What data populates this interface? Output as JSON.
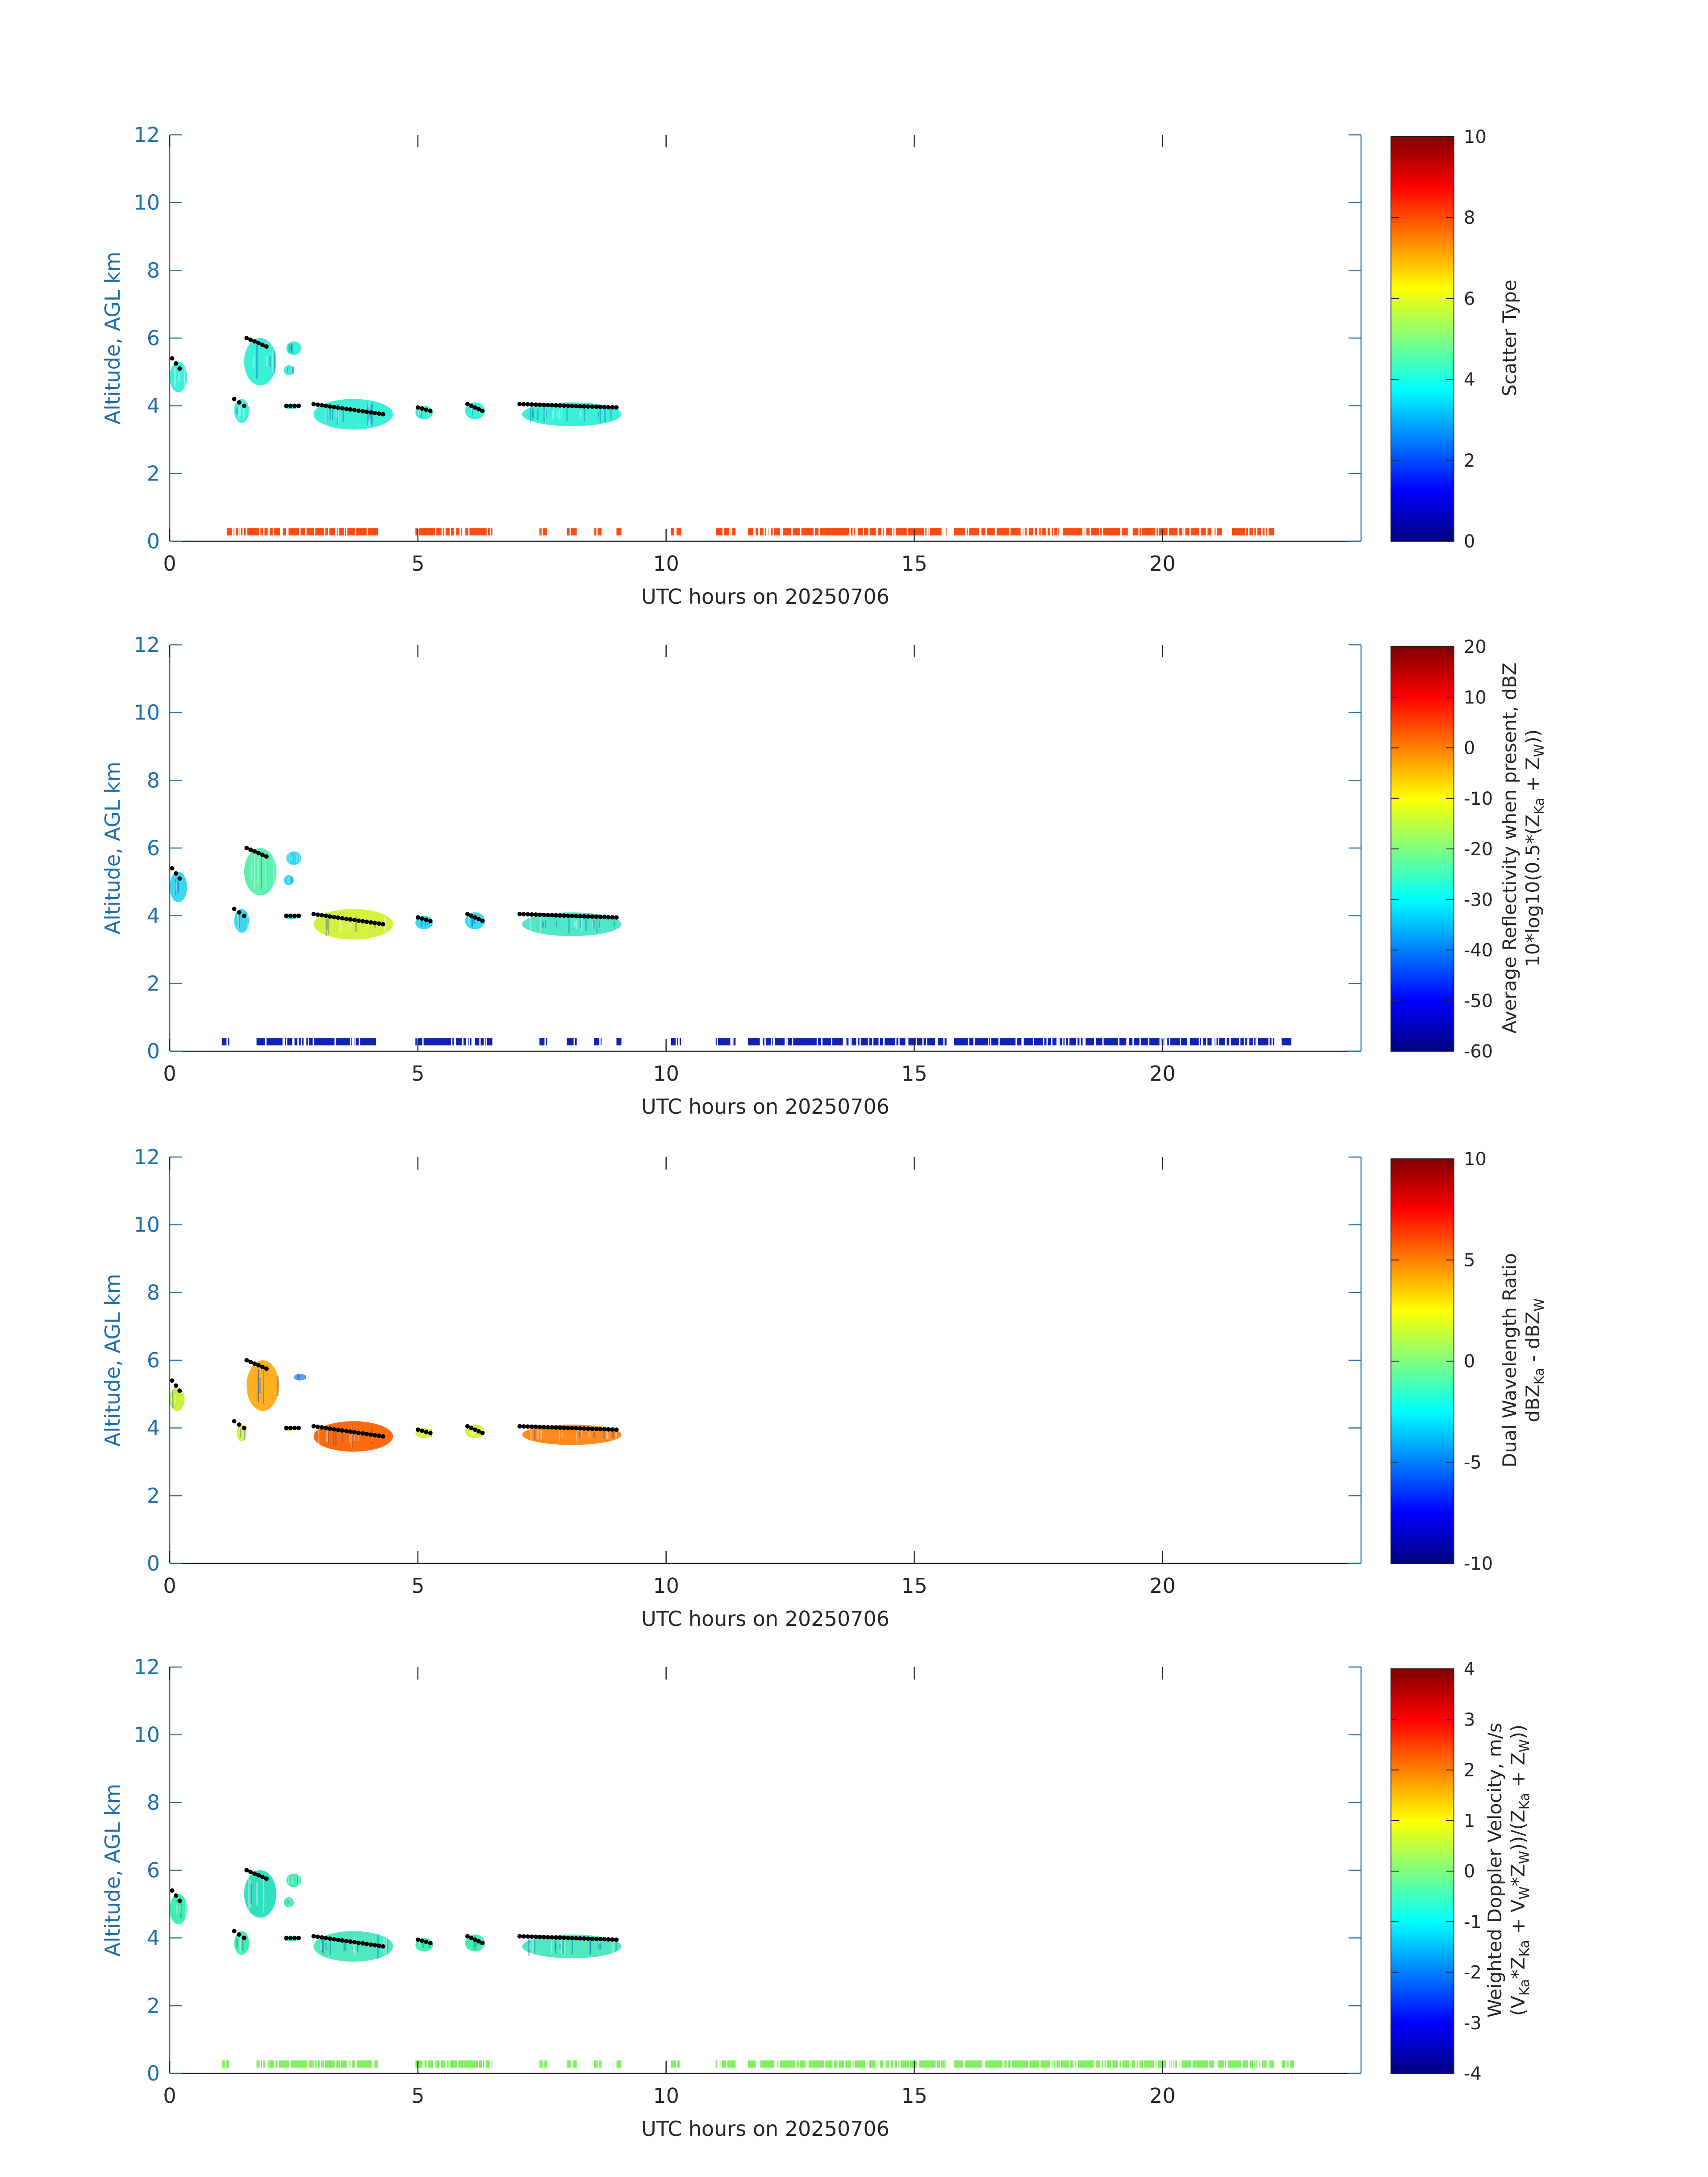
{
  "chart_data": [
    {
      "type": "heatmap",
      "panel": "scatter-type",
      "xlabel": "UTC hours on 20250706",
      "ylabel": "Altitude, AGL km",
      "xlim": [
        0,
        24
      ],
      "ylim": [
        0,
        12
      ],
      "xticks": [
        0,
        5,
        10,
        15,
        20
      ],
      "yticks": [
        0,
        2,
        4,
        6,
        8,
        10,
        12
      ],
      "colorbar": {
        "title_lines": [
          "Scatter Type"
        ],
        "range": [
          0,
          10
        ],
        "ticks": [
          "0",
          "2",
          "4",
          "6",
          "8",
          "10"
        ]
      },
      "surface_band": {
        "altitude_km": 0.25,
        "color": "#ff4a12",
        "segments": [
          [
            1.15,
            4.2
          ],
          [
            4.95,
            6.5
          ],
          [
            7.45,
            7.6
          ],
          [
            8.0,
            8.2
          ],
          [
            8.55,
            8.7
          ],
          [
            9.0,
            9.1
          ],
          [
            10.1,
            10.3
          ],
          [
            11.0,
            11.4
          ],
          [
            11.65,
            15.65
          ],
          [
            15.8,
            21.2
          ],
          [
            21.4,
            22.25
          ]
        ]
      },
      "echoes": [
        {
          "x": [
            0.0,
            0.35
          ],
          "y": [
            4.4,
            5.3
          ],
          "color": "#3cf0d8"
        },
        {
          "x": [
            1.3,
            1.6
          ],
          "y": [
            3.5,
            4.2
          ],
          "color": "#3cf0d8"
        },
        {
          "x": [
            1.5,
            2.15
          ],
          "y": [
            4.6,
            6.0
          ],
          "color": "#3cf0d8"
        },
        {
          "x": [
            2.35,
            2.65
          ],
          "y": [
            5.5,
            5.9
          ],
          "color": "#3cf0d8"
        },
        {
          "x": [
            2.3,
            2.5
          ],
          "y": [
            4.9,
            5.2
          ],
          "color": "#3cf0d8"
        },
        {
          "x": [
            2.3,
            2.6
          ],
          "y": [
            3.9,
            4.05
          ],
          "color": "#3cf0d8"
        },
        {
          "x": [
            2.9,
            4.5
          ],
          "y": [
            3.3,
            4.2
          ],
          "color": "#3cf0d8"
        },
        {
          "x": [
            4.95,
            5.3
          ],
          "y": [
            3.6,
            4.0
          ],
          "color": "#3cf0d8"
        },
        {
          "x": [
            5.95,
            6.35
          ],
          "y": [
            3.6,
            4.1
          ],
          "color": "#3cf0d8"
        },
        {
          "x": [
            7.1,
            9.1
          ],
          "y": [
            3.4,
            4.1
          ],
          "color": "#3cf0d8"
        }
      ],
      "cloud_top_points": [
        {
          "x": [
            0.05,
            0.2
          ],
          "y": [
            5.1,
            5.4
          ]
        },
        {
          "x": [
            1.3,
            1.5
          ],
          "y": [
            4.0,
            4.2
          ]
        },
        {
          "x": [
            1.55,
            1.95
          ],
          "y": [
            5.75,
            6.0
          ]
        },
        {
          "x": [
            2.35,
            2.6
          ],
          "y": [
            4.0,
            4.0
          ]
        },
        {
          "x": [
            2.9,
            4.3
          ],
          "y": [
            3.75,
            4.05
          ]
        },
        {
          "x": [
            5.0,
            5.25
          ],
          "y": [
            3.85,
            3.95
          ]
        },
        {
          "x": [
            6.0,
            6.3
          ],
          "y": [
            3.85,
            4.05
          ]
        },
        {
          "x": [
            7.05,
            9.0
          ],
          "y": [
            3.95,
            4.05
          ]
        }
      ]
    },
    {
      "type": "heatmap",
      "panel": "average-reflectivity",
      "xlabel": "UTC hours on 20250706",
      "ylabel": "Altitude, AGL km",
      "xlim": [
        0,
        24
      ],
      "ylim": [
        0,
        12
      ],
      "xticks": [
        0,
        5,
        10,
        15,
        20
      ],
      "yticks": [
        0,
        2,
        4,
        6,
        8,
        10,
        12
      ],
      "colorbar": {
        "title_lines": [
          "Average Reflectivity when present, dBZ",
          "10*log10(0.5*(Z",
          "Ka",
          " + Z",
          "W",
          "))"
        ],
        "range": [
          -60,
          20
        ],
        "ticks": [
          "-60",
          "-50",
          "-40",
          "-30",
          "-20",
          "-10",
          "0",
          "10",
          "20"
        ]
      },
      "surface_band": {
        "altitude_km": 0.25,
        "color": "#1020b8",
        "segments": [
          [
            1.05,
            1.2
          ],
          [
            1.75,
            4.2
          ],
          [
            4.95,
            6.5
          ],
          [
            7.45,
            7.6
          ],
          [
            8.0,
            8.2
          ],
          [
            8.55,
            8.7
          ],
          [
            9.0,
            9.1
          ],
          [
            10.1,
            10.3
          ],
          [
            11.0,
            11.4
          ],
          [
            11.65,
            15.65
          ],
          [
            15.8,
            22.25
          ],
          [
            22.4,
            22.65
          ]
        ]
      },
      "echoes": [
        {
          "x": [
            0.0,
            0.35
          ],
          "y": [
            4.4,
            5.3
          ],
          "color": "#3ad8f0"
        },
        {
          "x": [
            1.3,
            1.6
          ],
          "y": [
            3.5,
            4.2
          ],
          "color": "#3ad8f0"
        },
        {
          "x": [
            1.5,
            2.15
          ],
          "y": [
            4.6,
            6.0
          ],
          "color": "#60f0b0"
        },
        {
          "x": [
            2.35,
            2.65
          ],
          "y": [
            5.5,
            5.9
          ],
          "color": "#3ad8f0"
        },
        {
          "x": [
            2.3,
            2.5
          ],
          "y": [
            4.9,
            5.2
          ],
          "color": "#3ad8f0"
        },
        {
          "x": [
            2.3,
            2.6
          ],
          "y": [
            3.9,
            4.05
          ],
          "color": "#3ad8f0"
        },
        {
          "x": [
            2.9,
            4.5
          ],
          "y": [
            3.3,
            4.2
          ],
          "color": "#d6f040"
        },
        {
          "x": [
            4.95,
            5.3
          ],
          "y": [
            3.6,
            4.0
          ],
          "color": "#3ad8f0"
        },
        {
          "x": [
            5.95,
            6.35
          ],
          "y": [
            3.6,
            4.1
          ],
          "color": "#3ad8f0"
        },
        {
          "x": [
            7.1,
            9.1
          ],
          "y": [
            3.4,
            4.1
          ],
          "color": "#50e8c8"
        }
      ],
      "cloud_top_points": [
        {
          "x": [
            0.05,
            0.2
          ],
          "y": [
            5.1,
            5.4
          ]
        },
        {
          "x": [
            1.3,
            1.5
          ],
          "y": [
            4.0,
            4.2
          ]
        },
        {
          "x": [
            1.55,
            1.95
          ],
          "y": [
            5.75,
            6.0
          ]
        },
        {
          "x": [
            2.35,
            2.6
          ],
          "y": [
            4.0,
            4.0
          ]
        },
        {
          "x": [
            2.9,
            4.3
          ],
          "y": [
            3.75,
            4.05
          ]
        },
        {
          "x": [
            5.0,
            5.25
          ],
          "y": [
            3.85,
            3.95
          ]
        },
        {
          "x": [
            6.0,
            6.3
          ],
          "y": [
            3.85,
            4.05
          ]
        },
        {
          "x": [
            7.05,
            9.0
          ],
          "y": [
            3.95,
            4.05
          ]
        }
      ]
    },
    {
      "type": "heatmap",
      "panel": "dual-wavelength-ratio",
      "xlabel": "UTC hours on 20250706",
      "ylabel": "Altitude, AGL km",
      "xlim": [
        0,
        24
      ],
      "ylim": [
        0,
        12
      ],
      "xticks": [
        0,
        5,
        10,
        15,
        20
      ],
      "yticks": [
        0,
        2,
        4,
        6,
        8,
        10,
        12
      ],
      "colorbar": {
        "title_lines": [
          "Dual Wavelength Ratio",
          "dBZ",
          "Ka",
          " - dBZ",
          "W"
        ],
        "range": [
          -10,
          10
        ],
        "ticks": [
          "-10",
          "-5",
          "0",
          "5",
          "10"
        ]
      },
      "surface_band": null,
      "echoes": [
        {
          "x": [
            0.0,
            0.3
          ],
          "y": [
            4.5,
            5.2
          ],
          "color": "#c8f040"
        },
        {
          "x": [
            1.35,
            1.55
          ],
          "y": [
            3.6,
            4.1
          ],
          "color": "#d8f040"
        },
        {
          "x": [
            1.55,
            2.2
          ],
          "y": [
            4.5,
            6.0
          ],
          "color": "#ffb020"
        },
        {
          "x": [
            2.5,
            2.75
          ],
          "y": [
            5.4,
            5.6
          ],
          "color": "#60a0ff"
        },
        {
          "x": [
            2.3,
            2.5
          ],
          "y": [
            3.9,
            4.05
          ],
          "color": "#d0f050"
        },
        {
          "x": [
            2.9,
            4.5
          ],
          "y": [
            3.3,
            4.2
          ],
          "color": "#ff6a10"
        },
        {
          "x": [
            4.95,
            5.3
          ],
          "y": [
            3.7,
            4.0
          ],
          "color": "#d8f040"
        },
        {
          "x": [
            5.95,
            6.35
          ],
          "y": [
            3.7,
            4.1
          ],
          "color": "#d8f040"
        },
        {
          "x": [
            7.1,
            9.1
          ],
          "y": [
            3.5,
            4.1
          ],
          "color": "#ff8a20"
        }
      ],
      "cloud_top_points": [
        {
          "x": [
            0.05,
            0.2
          ],
          "y": [
            5.1,
            5.4
          ]
        },
        {
          "x": [
            1.3,
            1.5
          ],
          "y": [
            4.0,
            4.2
          ]
        },
        {
          "x": [
            1.55,
            1.95
          ],
          "y": [
            5.75,
            6.0
          ]
        },
        {
          "x": [
            2.35,
            2.6
          ],
          "y": [
            4.0,
            4.0
          ]
        },
        {
          "x": [
            2.9,
            4.3
          ],
          "y": [
            3.75,
            4.05
          ]
        },
        {
          "x": [
            5.0,
            5.25
          ],
          "y": [
            3.85,
            3.95
          ]
        },
        {
          "x": [
            6.0,
            6.3
          ],
          "y": [
            3.85,
            4.05
          ]
        },
        {
          "x": [
            7.05,
            9.0
          ],
          "y": [
            3.95,
            4.05
          ]
        }
      ]
    },
    {
      "type": "heatmap",
      "panel": "weighted-doppler-velocity",
      "xlabel": "UTC hours on 20250706",
      "ylabel": "Altitude, AGL km",
      "xlim": [
        0,
        24
      ],
      "ylim": [
        0,
        12
      ],
      "xticks": [
        0,
        5,
        10,
        15,
        20
      ],
      "yticks": [
        0,
        2,
        4,
        6,
        8,
        10,
        12
      ],
      "colorbar": {
        "title_lines": [
          "Weighted Doppler Velocity, m/s",
          "(V",
          "Ka",
          "*Z",
          "Ka",
          " + V",
          "W",
          "*Z",
          "W",
          "))/(Z",
          "Ka",
          " + Z",
          "W",
          "))"
        ],
        "range": [
          -4,
          4
        ],
        "ticks": [
          "-4",
          "-3",
          "-2",
          "-1",
          "0",
          "1",
          "2",
          "3",
          "4"
        ]
      },
      "surface_band": {
        "altitude_km": 0.25,
        "color": "#80f060",
        "segments": [
          [
            1.05,
            1.2
          ],
          [
            1.75,
            4.2
          ],
          [
            4.95,
            6.5
          ],
          [
            7.45,
            7.6
          ],
          [
            8.0,
            8.2
          ],
          [
            8.55,
            8.7
          ],
          [
            9.0,
            9.1
          ],
          [
            10.1,
            10.3
          ],
          [
            11.0,
            11.4
          ],
          [
            11.65,
            15.65
          ],
          [
            15.8,
            22.25
          ],
          [
            22.4,
            22.65
          ]
        ]
      },
      "echoes": [
        {
          "x": [
            0.0,
            0.35
          ],
          "y": [
            4.4,
            5.3
          ],
          "color": "#40f0b0"
        },
        {
          "x": [
            1.3,
            1.6
          ],
          "y": [
            3.5,
            4.2
          ],
          "color": "#40f0b0"
        },
        {
          "x": [
            1.5,
            2.15
          ],
          "y": [
            4.6,
            6.0
          ],
          "color": "#30e0c0"
        },
        {
          "x": [
            2.35,
            2.65
          ],
          "y": [
            5.5,
            5.9
          ],
          "color": "#40f0b0"
        },
        {
          "x": [
            2.3,
            2.5
          ],
          "y": [
            4.9,
            5.2
          ],
          "color": "#40f0b0"
        },
        {
          "x": [
            2.3,
            2.6
          ],
          "y": [
            3.9,
            4.05
          ],
          "color": "#40f0b0"
        },
        {
          "x": [
            2.9,
            4.5
          ],
          "y": [
            3.3,
            4.2
          ],
          "color": "#50e8c0"
        },
        {
          "x": [
            4.95,
            5.3
          ],
          "y": [
            3.6,
            4.0
          ],
          "color": "#40f0b0"
        },
        {
          "x": [
            5.95,
            6.35
          ],
          "y": [
            3.6,
            4.1
          ],
          "color": "#40f0b0"
        },
        {
          "x": [
            7.1,
            9.1
          ],
          "y": [
            3.4,
            4.1
          ],
          "color": "#50e8c0"
        }
      ],
      "cloud_top_points": [
        {
          "x": [
            0.05,
            0.2
          ],
          "y": [
            5.1,
            5.4
          ]
        },
        {
          "x": [
            1.3,
            1.5
          ],
          "y": [
            4.0,
            4.2
          ]
        },
        {
          "x": [
            1.55,
            1.95
          ],
          "y": [
            5.75,
            6.0
          ]
        },
        {
          "x": [
            2.35,
            2.6
          ],
          "y": [
            4.0,
            4.0
          ]
        },
        {
          "x": [
            2.9,
            4.3
          ],
          "y": [
            3.75,
            4.05
          ]
        },
        {
          "x": [
            5.0,
            5.25
          ],
          "y": [
            3.85,
            3.95
          ]
        },
        {
          "x": [
            6.0,
            6.3
          ],
          "y": [
            3.85,
            4.05
          ]
        },
        {
          "x": [
            7.05,
            9.0
          ],
          "y": [
            3.95,
            4.05
          ]
        }
      ]
    }
  ],
  "colors": {
    "y_axis": "#1f6fb0",
    "x_axis": "#262626",
    "cloud_top": "#000000",
    "colormap": [
      "#00007f",
      "#0000ff",
      "#007fff",
      "#00ffff",
      "#7fff7f",
      "#ffff00",
      "#ff7f00",
      "#ff0000",
      "#7f0000"
    ]
  }
}
